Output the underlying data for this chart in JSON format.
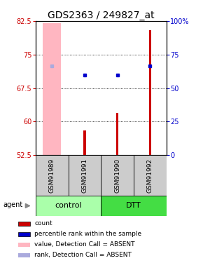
{
  "title": "GDS2363 / 249827_at",
  "samples": [
    "GSM91989",
    "GSM91991",
    "GSM91990",
    "GSM91992"
  ],
  "groups": [
    "control",
    "control",
    "DTT",
    "DTT"
  ],
  "ylim_left": [
    52.5,
    82.5
  ],
  "ylim_right": [
    0,
    100
  ],
  "yticks_left": [
    52.5,
    60,
    67.5,
    75,
    82.5
  ],
  "yticks_right": [
    0,
    25,
    50,
    75,
    100
  ],
  "ytick_labels_left": [
    "52.5",
    "60",
    "67.5",
    "75",
    "82.5"
  ],
  "ytick_labels_right": [
    "0",
    "25",
    "50",
    "75",
    "100%"
  ],
  "grid_lines": [
    60,
    67.5,
    75
  ],
  "red_bars": [
    null,
    58.0,
    62.0,
    80.5
  ],
  "pink_bars": [
    82.0,
    null,
    null,
    null
  ],
  "blue_squares": [
    null,
    70.5,
    70.5,
    72.5
  ],
  "light_blue_squares": [
    72.5,
    null,
    null,
    null
  ],
  "bar_bottom": 52.5,
  "legend_items": [
    {
      "color": "#CC0000",
      "label": "count",
      "edge": true
    },
    {
      "color": "#0000CC",
      "label": "percentile rank within the sample",
      "edge": true
    },
    {
      "color": "#FFB6C1",
      "label": "value, Detection Call = ABSENT",
      "edge": false
    },
    {
      "color": "#AAAADD",
      "label": "rank, Detection Call = ABSENT",
      "edge": false
    }
  ],
  "title_fontsize": 10,
  "tick_fontsize": 7,
  "sample_label_fontsize": 6.5,
  "group_label_fontsize": 8,
  "left_tick_color": "#CC0000",
  "right_tick_color": "#0000CC",
  "pink_bar_width": 0.55,
  "red_bar_width": 0.07,
  "marker_size": 3.5,
  "control_color": "#AAFFAA",
  "dtt_color": "#44DD44",
  "sample_bg_color": "#CCCCCC",
  "agent_arrow_color": "#888888"
}
